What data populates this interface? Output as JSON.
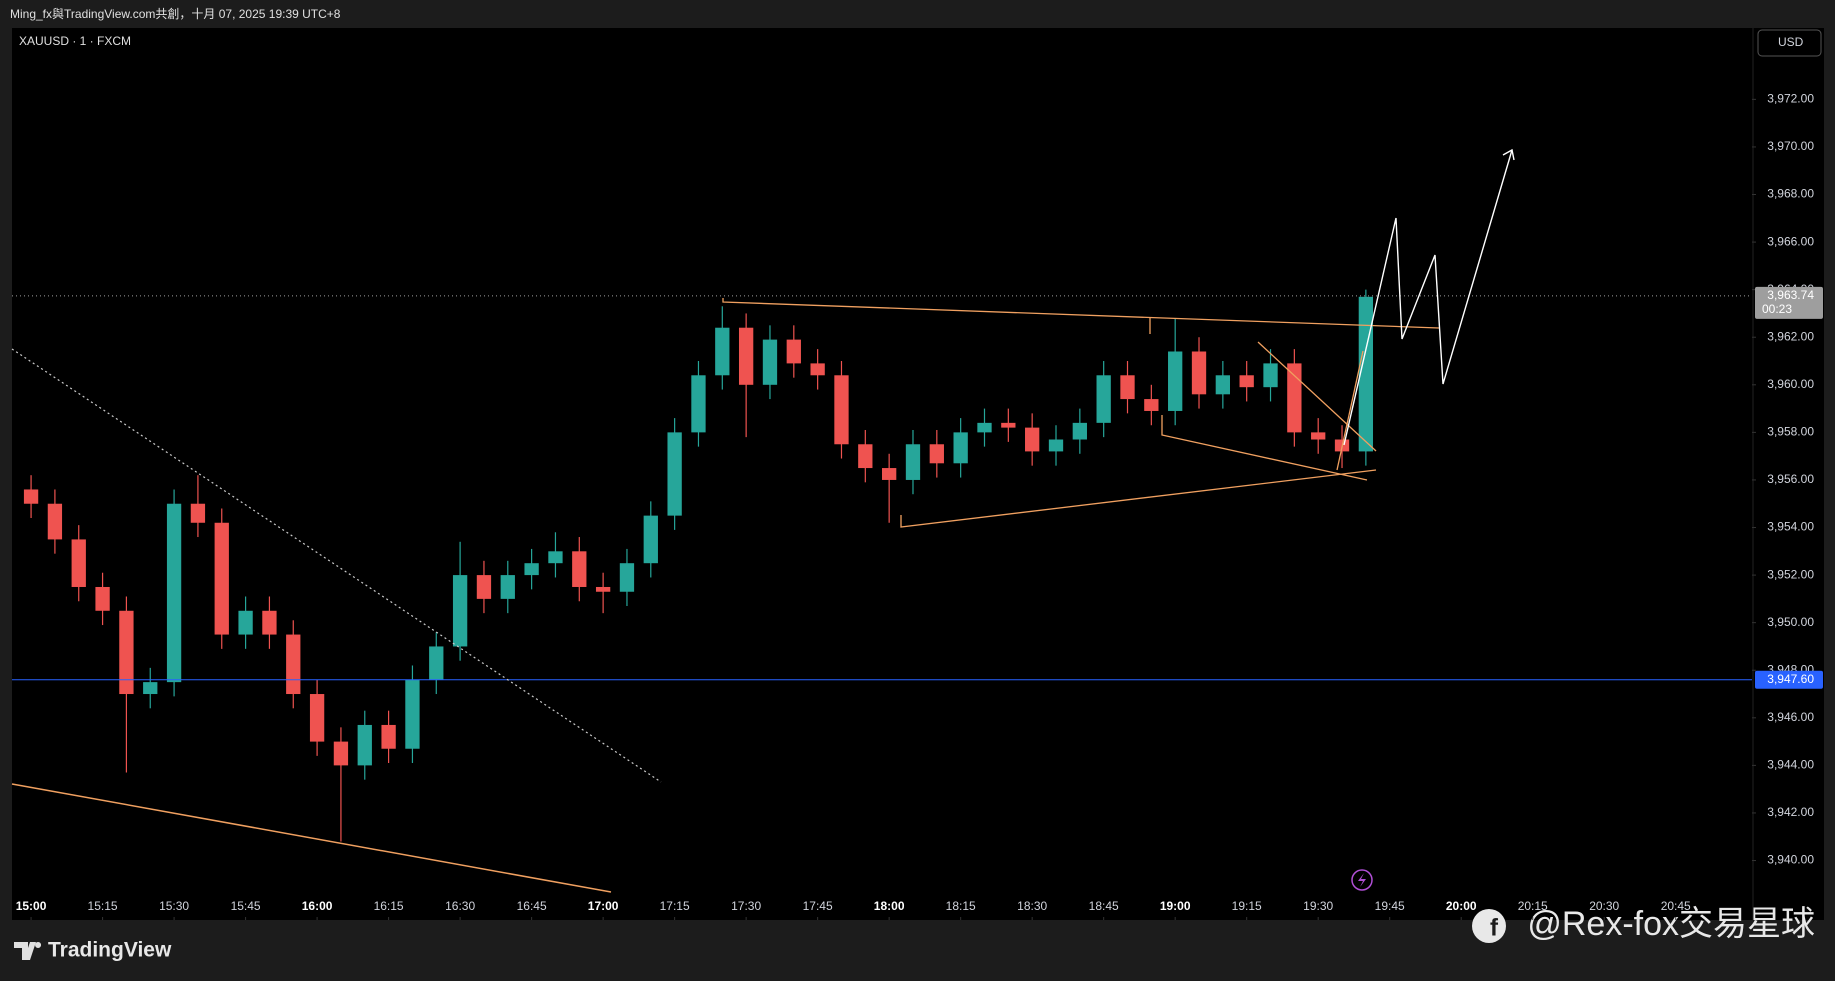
{
  "header": {
    "title": "Ming_fx與TradingView.com共創，十月 07, 2025 19:39 UTC+8"
  },
  "footer": {
    "brand": "TradingView",
    "watermark": "@Rex-fox交易星球"
  },
  "chart_data": {
    "type": "candlestick",
    "symbol": "XAUUSD · 1 · FXCM",
    "currency": "USD",
    "up_color": "#26a69a",
    "down_color": "#ef5350",
    "x": [
      "15:00",
      "15:05",
      "15:10",
      "15:15",
      "15:20",
      "15:25",
      "15:30",
      "15:35",
      "15:40",
      "15:45",
      "15:50",
      "15:55",
      "16:00",
      "16:05",
      "16:10",
      "16:15",
      "16:20",
      "16:25",
      "16:30",
      "16:35",
      "16:40",
      "16:45",
      "16:50",
      "16:55",
      "17:00",
      "17:05",
      "17:10",
      "17:15",
      "17:20",
      "17:25",
      "17:30",
      "17:35",
      "17:40",
      "17:45",
      "17:50",
      "17:55",
      "18:00",
      "18:05",
      "18:10",
      "18:15",
      "18:20",
      "18:25",
      "18:30",
      "18:35",
      "18:40",
      "18:45",
      "18:50",
      "18:55",
      "19:00",
      "19:05",
      "19:10",
      "19:15",
      "19:20",
      "19:25",
      "19:30",
      "19:35",
      "19:40"
    ],
    "open": [
      3955.6,
      3955.0,
      3953.5,
      3951.5,
      3950.5,
      3947.0,
      3947.5,
      3955.0,
      3954.2,
      3949.5,
      3950.5,
      3949.5,
      3947.0,
      3945.0,
      3944.0,
      3945.7,
      3944.7,
      3947.6,
      3949.0,
      3952.0,
      3951.0,
      3952.0,
      3952.5,
      3953.0,
      3951.5,
      3951.3,
      3952.5,
      3954.5,
      3958.0,
      3960.4,
      3962.4,
      3960.0,
      3961.9,
      3960.9,
      3960.4,
      3957.5,
      3956.5,
      3956.0,
      3957.5,
      3956.7,
      3958.0,
      3958.4,
      3958.2,
      3957.2,
      3957.7,
      3958.4,
      3960.4,
      3959.4,
      3958.9,
      3961.4,
      3959.6,
      3960.4,
      3959.9,
      3960.9,
      3958.0,
      3957.7,
      3957.2
    ],
    "high": [
      3956.2,
      3955.6,
      3954.1,
      3952.1,
      3951.1,
      3948.1,
      3955.6,
      3956.2,
      3954.8,
      3951.1,
      3951.1,
      3950.1,
      3947.6,
      3945.6,
      3946.3,
      3946.3,
      3948.2,
      3949.6,
      3953.4,
      3952.6,
      3952.6,
      3953.1,
      3953.8,
      3953.6,
      3952.1,
      3953.1,
      3955.1,
      3958.6,
      3961.0,
      3963.3,
      3963.0,
      3962.5,
      3962.5,
      3961.5,
      3961.0,
      3958.1,
      3957.1,
      3958.1,
      3958.1,
      3958.6,
      3959.0,
      3959.0,
      3958.8,
      3958.3,
      3959.0,
      3961.0,
      3961.0,
      3960.0,
      3962.8,
      3962.0,
      3961.0,
      3961.0,
      3961.5,
      3961.5,
      3958.6,
      3958.3,
      3964.0
    ],
    "low": [
      3954.4,
      3952.9,
      3950.9,
      3949.9,
      3943.7,
      3946.4,
      3946.9,
      3953.6,
      3948.9,
      3948.9,
      3948.9,
      3946.4,
      3944.4,
      3940.8,
      3943.4,
      3944.1,
      3944.1,
      3947.0,
      3948.4,
      3950.4,
      3950.4,
      3951.4,
      3951.9,
      3950.9,
      3950.4,
      3950.7,
      3951.9,
      3953.9,
      3957.4,
      3959.8,
      3957.8,
      3959.4,
      3960.3,
      3959.8,
      3956.9,
      3955.9,
      3954.2,
      3955.4,
      3956.1,
      3956.1,
      3957.4,
      3957.6,
      3956.6,
      3956.6,
      3957.1,
      3957.8,
      3958.8,
      3958.3,
      3958.3,
      3959.0,
      3959.0,
      3959.3,
      3959.3,
      3957.4,
      3957.1,
      3956.5,
      3956.6
    ],
    "close": [
      3955.0,
      3953.5,
      3951.5,
      3950.5,
      3947.0,
      3947.5,
      3955.0,
      3954.2,
      3949.5,
      3950.5,
      3949.5,
      3947.0,
      3945.0,
      3944.0,
      3945.7,
      3944.7,
      3947.6,
      3949.0,
      3952.0,
      3951.0,
      3952.0,
      3952.5,
      3953.0,
      3951.5,
      3951.3,
      3952.5,
      3954.5,
      3958.0,
      3960.4,
      3962.4,
      3960.0,
      3961.9,
      3960.9,
      3960.4,
      3957.5,
      3956.5,
      3956.0,
      3957.5,
      3956.7,
      3958.0,
      3958.4,
      3958.2,
      3957.2,
      3957.7,
      3958.4,
      3960.4,
      3959.4,
      3958.9,
      3961.4,
      3959.6,
      3960.4,
      3959.9,
      3960.9,
      3958.0,
      3957.7,
      3957.2,
      3963.7
    ],
    "xlim": [
      "14:56",
      "21:01"
    ],
    "xticks": [
      "15:00",
      "15:15",
      "15:30",
      "15:45",
      "16:00",
      "16:15",
      "16:30",
      "16:45",
      "17:00",
      "17:15",
      "17:30",
      "17:45",
      "18:00",
      "18:15",
      "18:30",
      "18:45",
      "19:00",
      "19:15",
      "19:30",
      "19:45",
      "20:00",
      "20:15",
      "20:30",
      "20:45"
    ],
    "ylim": [
      3937.5,
      3975
    ],
    "yticks": [
      {
        "value": 3940,
        "label": "3,940.00"
      },
      {
        "value": 3942,
        "label": "3,942.00"
      },
      {
        "value": 3944,
        "label": "3,944.00"
      },
      {
        "value": 3946,
        "label": "3,946.00"
      },
      {
        "value": 3948,
        "label": "3,948.00"
      },
      {
        "value": 3950,
        "label": "3,950.00"
      },
      {
        "value": 3952,
        "label": "3,952.00"
      },
      {
        "value": 3954,
        "label": "3,954.00"
      },
      {
        "value": 3956,
        "label": "3,956.00"
      },
      {
        "value": 3958,
        "label": "3,958.00"
      },
      {
        "value": 3960,
        "label": "3,960.00"
      },
      {
        "value": 3962,
        "label": "3,962.00"
      },
      {
        "value": 3964,
        "label": "3,964.00"
      },
      {
        "value": 3966,
        "label": "3,966.00"
      },
      {
        "value": 3968,
        "label": "3,968.00"
      },
      {
        "value": 3970,
        "label": "3,970.00"
      },
      {
        "value": 3972,
        "label": "3,972.00"
      }
    ],
    "grid": false,
    "price_lines": [
      {
        "value": 3963.74,
        "label": "3,963.74",
        "countdown": "00:23",
        "color": "#9e9e9e",
        "style": "dotted"
      },
      {
        "value": 3947.6,
        "label": "3,947.60",
        "color": "#2962ff",
        "style": "solid"
      }
    ]
  }
}
